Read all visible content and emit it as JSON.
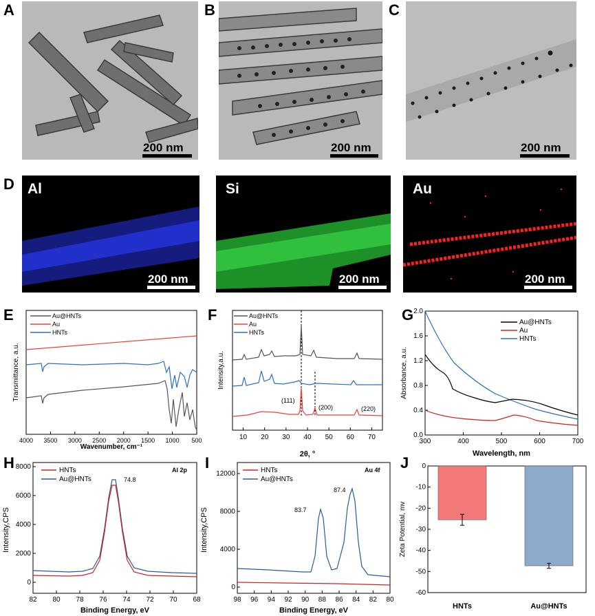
{
  "panels": {
    "A": {
      "letter": "A",
      "scale": "200 nm"
    },
    "B": {
      "letter": "B",
      "scale": "200 nm"
    },
    "C": {
      "letter": "C",
      "scale": "200 nm"
    },
    "D": {
      "letter": "D",
      "maps": [
        {
          "label": "Al",
          "scale": "200 nm",
          "color": "#2a3cff"
        },
        {
          "label": "Si",
          "scale": "200 nm",
          "color": "#37d447"
        },
        {
          "label": "Au",
          "scale": "200 nm",
          "color": "#ff2020"
        }
      ]
    },
    "E": {
      "letter": "E"
    },
    "F": {
      "letter": "F"
    },
    "G": {
      "letter": "G"
    },
    "H": {
      "letter": "H"
    },
    "I": {
      "letter": "I"
    },
    "J": {
      "letter": "J"
    }
  },
  "chart_data": [
    {
      "id": "E",
      "type": "line",
      "xlabel": "Wavenumber, cm⁻¹",
      "ylabel": "Transmittance, a.u.",
      "xlim": [
        4000,
        500
      ],
      "xticks": [
        "4000",
        "3500",
        "3000",
        "2500",
        "2000",
        "1500",
        "1000",
        "500"
      ],
      "series": [
        {
          "name": "Au@HNTs",
          "color": "#555555"
        },
        {
          "name": "Au",
          "color": "#e8413c"
        },
        {
          "name": "HNTs",
          "color": "#2a6fc0"
        }
      ]
    },
    {
      "id": "F",
      "type": "line",
      "xlabel": "2θ, °",
      "ylabel": "Intensity,a.u.",
      "xlim": [
        5,
        75
      ],
      "xticks": [
        "10",
        "20",
        "30",
        "40",
        "50",
        "60",
        "70"
      ],
      "series": [
        {
          "name": "Au@HNTs",
          "color": "#555555"
        },
        {
          "name": "Au",
          "color": "#e8413c"
        },
        {
          "name": "HNTs",
          "color": "#2a6fc0"
        }
      ],
      "annotations": [
        "(111)",
        "(200)",
        "(220)"
      ]
    },
    {
      "id": "G",
      "type": "line",
      "xlabel": "Wavelength, nm",
      "ylabel": "Absorbance, a.u.",
      "xlim": [
        300,
        700
      ],
      "ylim": [
        0.0,
        2.0
      ],
      "xticks": [
        "300",
        "400",
        "500",
        "600",
        "700"
      ],
      "yticks": [
        "0.0",
        "0.4",
        "0.8",
        "1.2",
        "1.6",
        "2.0"
      ],
      "series": [
        {
          "name": "Au@HNTs",
          "color": "#000000"
        },
        {
          "name": "Au",
          "color": "#d42020"
        },
        {
          "name": "HNTs",
          "color": "#2a6fc0"
        }
      ]
    },
    {
      "id": "H",
      "type": "line",
      "title": "Al 2p",
      "xlabel": "Binding Energy, eV",
      "ylabel": "Intensity,CPS",
      "xlim": [
        82,
        68
      ],
      "ylim": [
        0,
        8000
      ],
      "xticks": [
        "82",
        "80",
        "78",
        "76",
        "74",
        "72",
        "70",
        "68"
      ],
      "yticks": [
        "0",
        "2000",
        "4000",
        "6000",
        "8000"
      ],
      "series": [
        {
          "name": "HNTs",
          "color": "#d42020"
        },
        {
          "name": "Au@HNTs",
          "color": "#2a5a9a"
        }
      ],
      "annotations": [
        "74.8"
      ]
    },
    {
      "id": "I",
      "type": "line",
      "title": "Au 4f",
      "xlabel": "Binding Energy, eV",
      "ylabel": "Intensity,CPS",
      "xlim": [
        98,
        80
      ],
      "ylim": [
        0,
        14000
      ],
      "xticks": [
        "98",
        "96",
        "94",
        "92",
        "90",
        "88",
        "86",
        "84",
        "82",
        "80"
      ],
      "yticks": [
        "0",
        "4000",
        "8000",
        "12000"
      ],
      "series": [
        {
          "name": "HNTs",
          "color": "#d42020"
        },
        {
          "name": "Au@HNTs",
          "color": "#2a5a9a"
        }
      ],
      "annotations": [
        "83.7",
        "87.4"
      ]
    },
    {
      "id": "J",
      "type": "bar",
      "ylabel": "Zeta Potential, mv",
      "ylim": [
        -60,
        0
      ],
      "yticks": [
        "0",
        "-10",
        "-20",
        "-30",
        "-40",
        "-50",
        "-60"
      ],
      "categories": [
        "HNTs",
        "Au@HNTs"
      ],
      "values": [
        -25.5,
        -47.3
      ],
      "errors": [
        2.6,
        1.2
      ],
      "colors": [
        "#f47a7a",
        "#8eaacb"
      ]
    }
  ]
}
